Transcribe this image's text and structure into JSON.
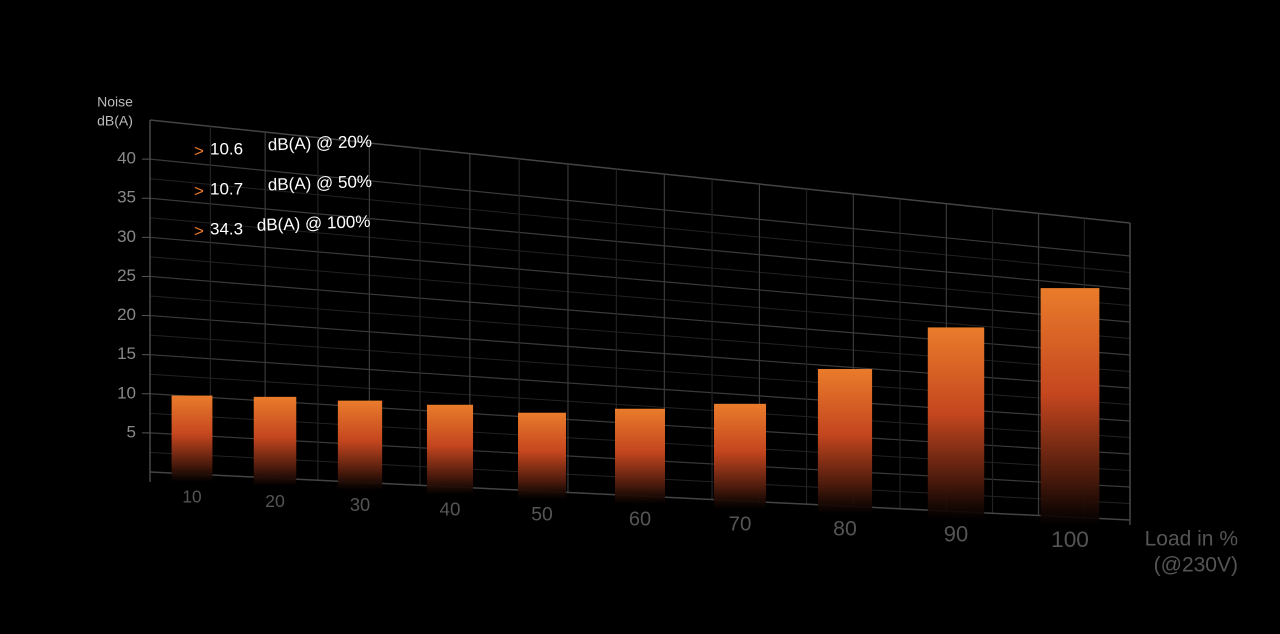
{
  "chart_data": {
    "type": "bar",
    "y_label": [
      "Noise",
      "dB(A)"
    ],
    "x_label": [
      "Load in %",
      "(@230V)"
    ],
    "categories": [
      "10",
      "20",
      "30",
      "40",
      "50",
      "60",
      "70",
      "80",
      "90",
      "100"
    ],
    "values": [
      10.1,
      10.6,
      10.8,
      11.0,
      10.7,
      12.1,
      13.7,
      19.7,
      27.0,
      34.3
    ],
    "color": "#e8782a",
    "ylim": [
      0,
      45
    ],
    "yticks": [
      5,
      10,
      15,
      20,
      25,
      30,
      35,
      40
    ],
    "grid": true,
    "annotations": [
      {
        "marker": ">",
        "value": "10.6",
        "text": "dB(A) @ 20%"
      },
      {
        "marker": ">",
        "value": "10.7",
        "text": "dB(A) @ 50%"
      },
      {
        "marker": ">",
        "value": "34.3",
        "text": "dB(A) @ 100%"
      }
    ]
  }
}
